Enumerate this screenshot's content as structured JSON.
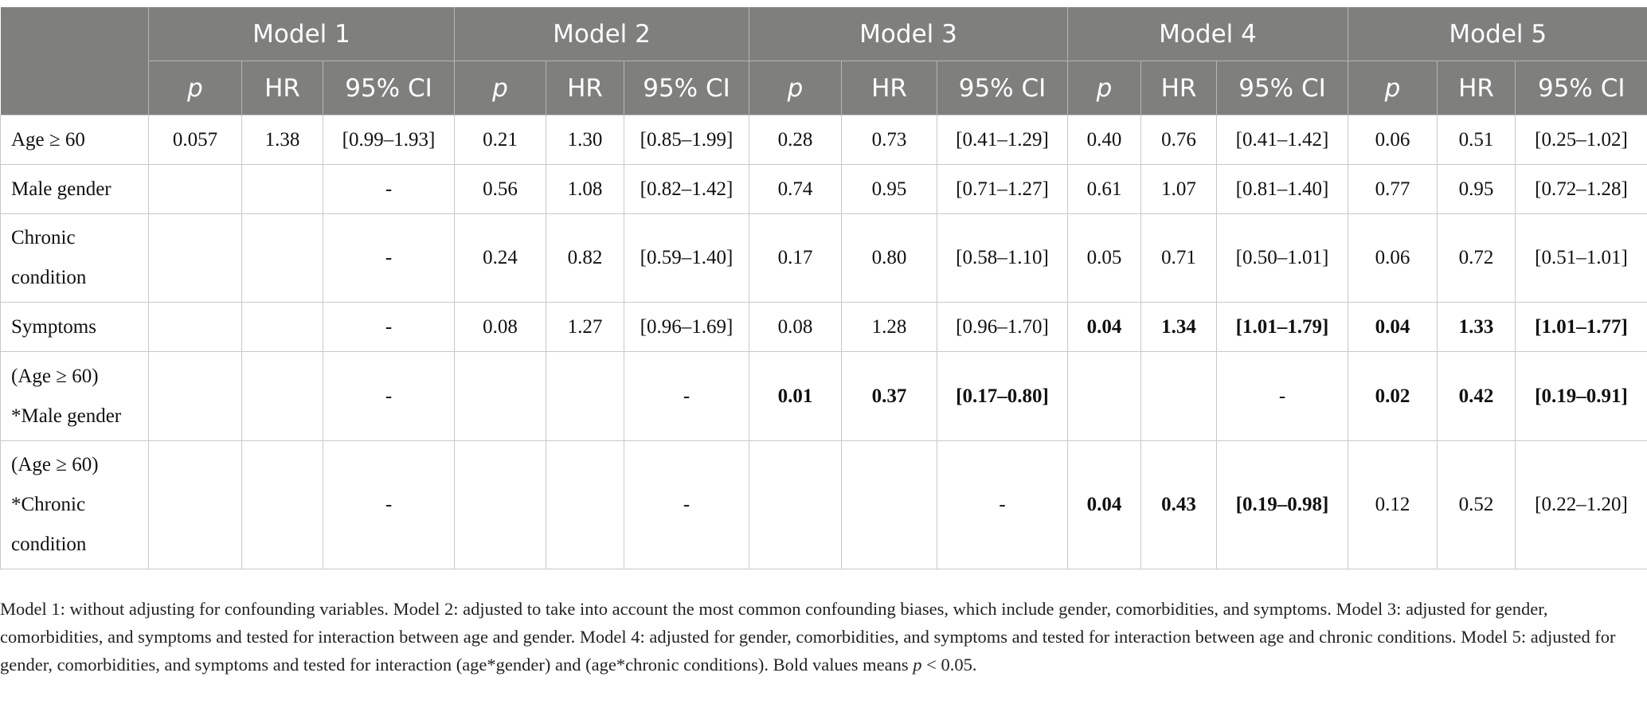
{
  "table": {
    "groups": [
      "Model 1",
      "Model 2",
      "Model 3",
      "Model 4",
      "Model 5"
    ],
    "columns": [
      "p",
      "HR",
      "95% CI",
      "p",
      "HR",
      "95% CI",
      "p",
      "HR",
      "95% CI",
      "p",
      "HR",
      "95% CI",
      "p",
      "HR",
      "95% CI"
    ],
    "italic_columns": [
      "p"
    ],
    "rows": [
      {
        "label": [
          "Age ≥ 60"
        ],
        "cells": [
          "0.057",
          "1.38",
          "[0.99–1.93]",
          "0.21",
          "1.30",
          "[0.85–1.99]",
          "0.28",
          "0.73",
          "[0.41–1.29]",
          "0.40",
          "0.76",
          "[0.41–1.42]",
          "0.06",
          "0.51",
          "[0.25–1.02]"
        ],
        "bold_models": []
      },
      {
        "label": [
          "Male gender"
        ],
        "cells": [
          null,
          null,
          "-",
          "0.56",
          "1.08",
          "[0.82–1.42]",
          "0.74",
          "0.95",
          "[0.71–1.27]",
          "0.61",
          "1.07",
          "[0.81–1.40]",
          "0.77",
          "0.95",
          "[0.72–1.28]"
        ],
        "bold_models": []
      },
      {
        "label": [
          "Chronic",
          "condition"
        ],
        "cells": [
          null,
          null,
          "-",
          "0.24",
          "0.82",
          "[0.59–1.40]",
          "0.17",
          "0.80",
          "[0.58–1.10]",
          "0.05",
          "0.71",
          "[0.50–1.01]",
          "0.06",
          "0.72",
          "[0.51–1.01]"
        ],
        "bold_models": []
      },
      {
        "label": [
          "Symptoms"
        ],
        "cells": [
          null,
          null,
          "-",
          "0.08",
          "1.27",
          "[0.96–1.69]",
          "0.08",
          "1.28",
          "[0.96–1.70]",
          "0.04",
          "1.34",
          "[1.01–1.79]",
          "0.04",
          "1.33",
          "[1.01–1.77]"
        ],
        "bold_models": [
          3,
          4
        ]
      },
      {
        "label": [
          "(Age ≥ 60)",
          "*Male gender"
        ],
        "cells": [
          null,
          null,
          "-",
          null,
          null,
          "-",
          "0.01",
          "0.37",
          "[0.17–0.80]",
          null,
          null,
          "-",
          "0.02",
          "0.42",
          "[0.19–0.91]"
        ],
        "bold_models": [
          2,
          4
        ]
      },
      {
        "label": [
          "(Age ≥ 60)",
          "*Chronic",
          "condition"
        ],
        "cells": [
          null,
          null,
          "-",
          null,
          null,
          "-",
          null,
          null,
          "-",
          "0.04",
          "0.43",
          "[0.19–0.98]",
          "0.12",
          "0.52",
          "[0.22–1.20]"
        ],
        "bold_models": [
          3
        ]
      }
    ]
  },
  "footnote": [
    "Model 1: without adjusting for confounding variables. Model 2: adjusted to take into account the most common confounding biases, which include gender, comorbidities, and symptoms. Model 3: adjusted for gender, comorbidities, and symptoms and tested for interaction between age and gender. Model 4: adjusted for gender, comorbidities, and symptoms and tested for interaction between age and chronic conditions. Model 5: adjusted for gender, comorbidities, and symptoms and tested for interaction (age*gender) and (age*chronic conditions).  Bold values means ",
    "p",
    " < 0.05."
  ]
}
